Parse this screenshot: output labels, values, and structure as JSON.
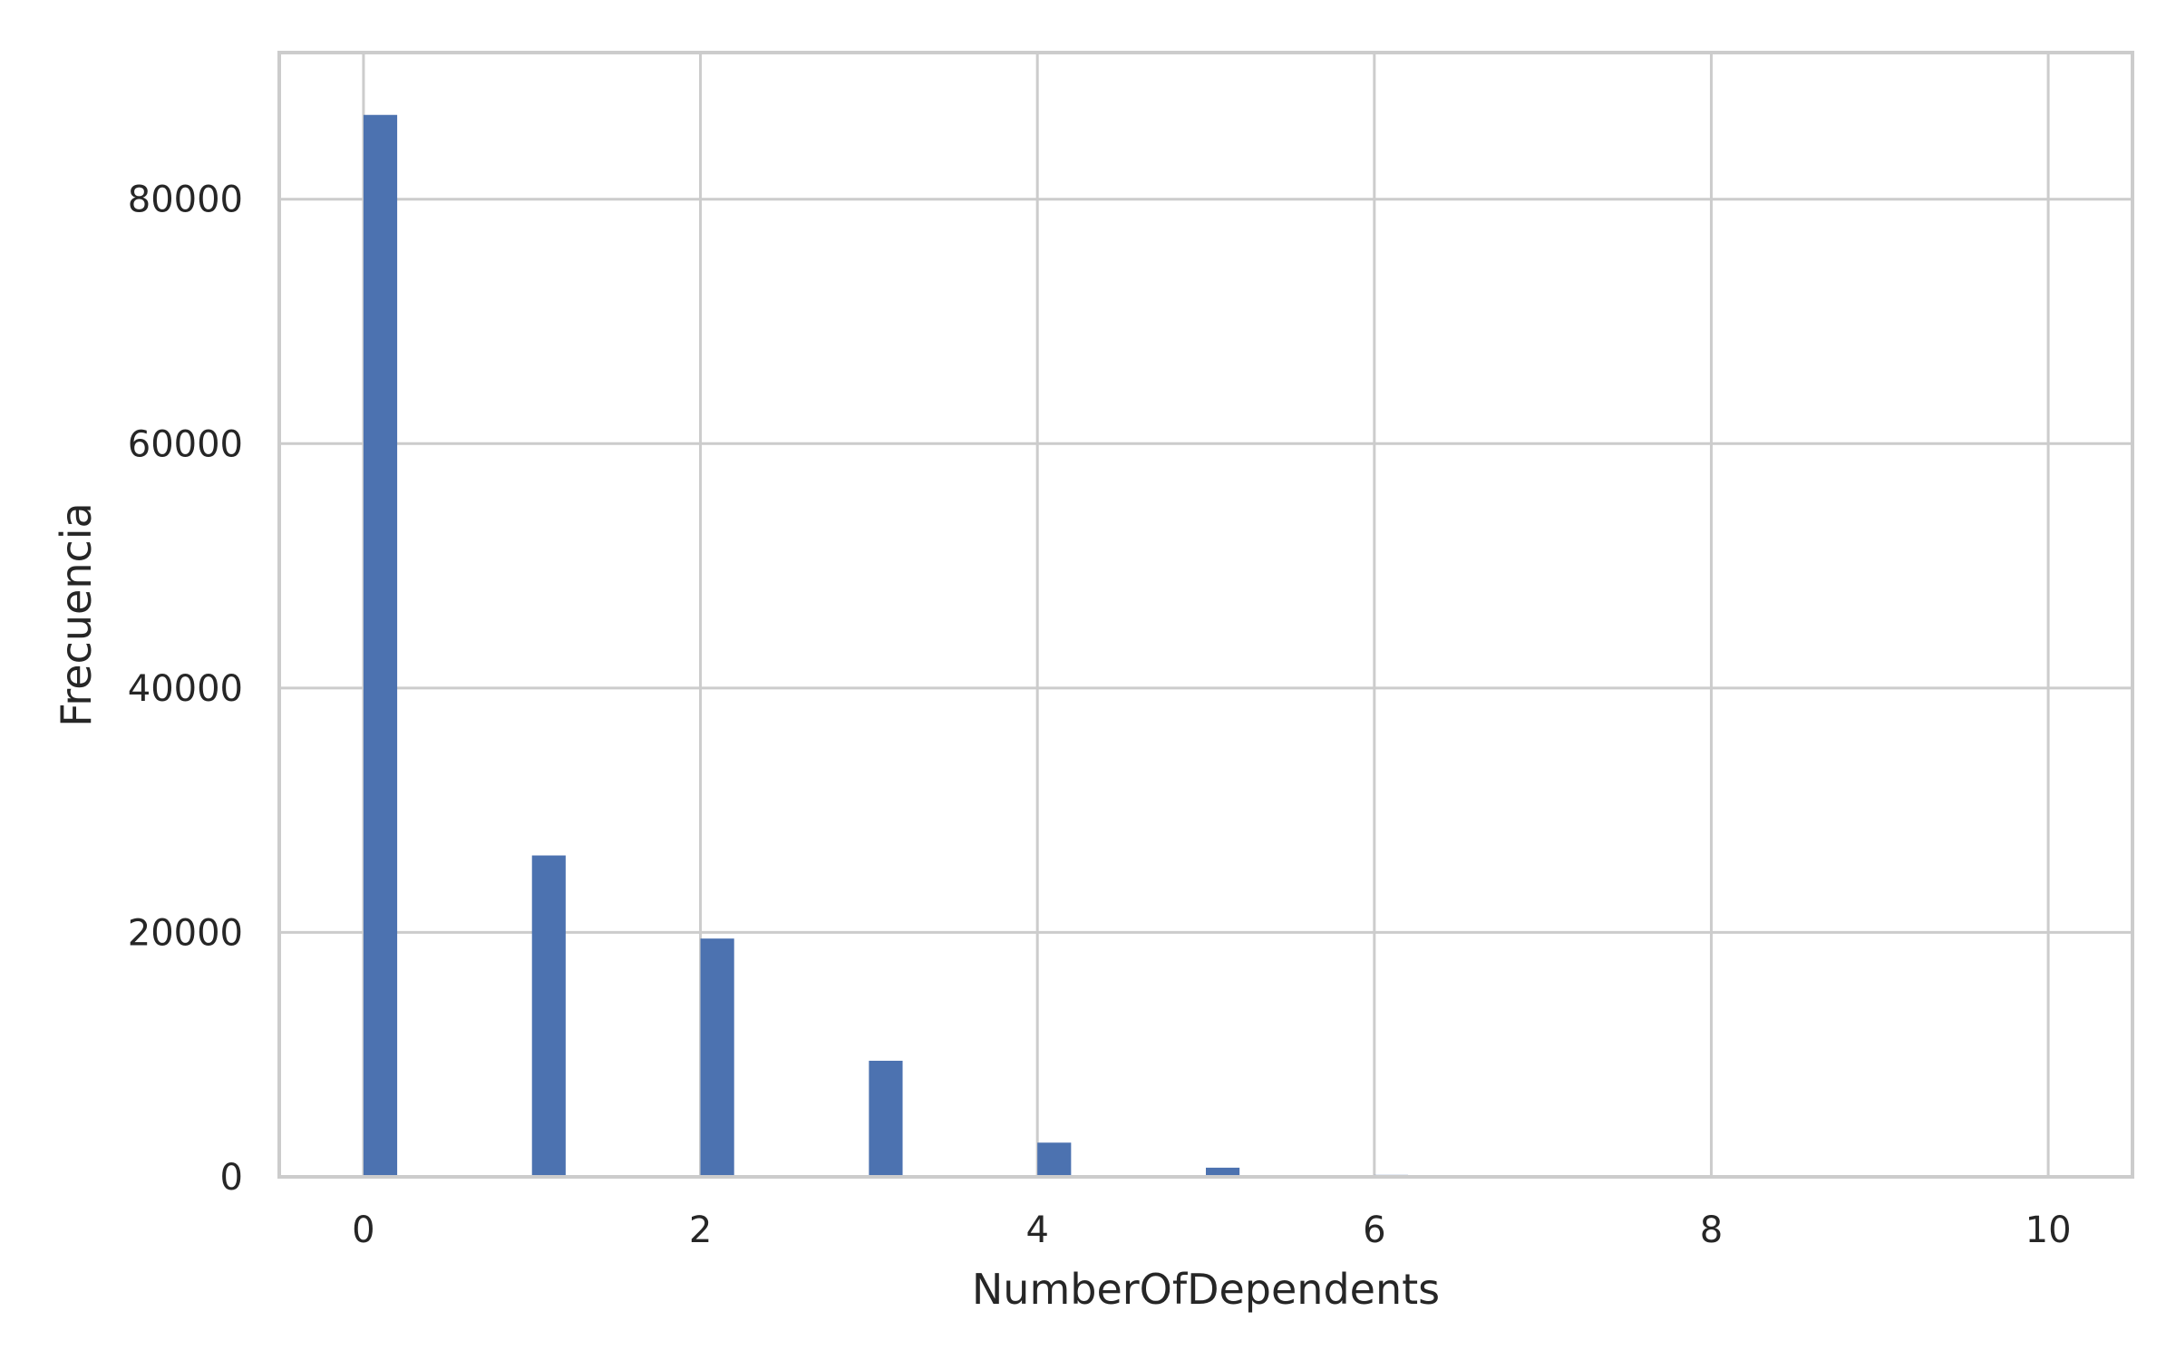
{
  "chart_data": {
    "type": "bar",
    "title": "",
    "xlabel": "NumberOfDependents",
    "ylabel": "Frecuencia",
    "xlim": [
      -0.5,
      10.5
    ],
    "ylim": [
      0,
      92000
    ],
    "x_ticks": [
      0,
      2,
      4,
      6,
      8,
      10
    ],
    "x_tick_labels": [
      "0",
      "2",
      "4",
      "6",
      "8",
      "10"
    ],
    "y_ticks": [
      0,
      20000,
      40000,
      60000,
      80000
    ],
    "y_tick_labels": [
      "0",
      "20000",
      "40000",
      "60000",
      "80000"
    ],
    "grid": true,
    "bin_width": 0.2,
    "bars": [
      {
        "x": 0,
        "value": 86900
      },
      {
        "x": 1,
        "value": 26300
      },
      {
        "x": 2,
        "value": 19500
      },
      {
        "x": 3,
        "value": 9500
      },
      {
        "x": 4,
        "value": 2800
      },
      {
        "x": 5,
        "value": 750
      },
      {
        "x": 6,
        "value": 160
      },
      {
        "x": 7,
        "value": 50
      },
      {
        "x": 8,
        "value": 25
      },
      {
        "x": 9,
        "value": 5
      },
      {
        "x": 10,
        "value": 1
      }
    ],
    "colors": {
      "bar": "#4c72b0",
      "grid": "#cccccc",
      "frame": "#cccccc",
      "text": "#262626"
    }
  }
}
